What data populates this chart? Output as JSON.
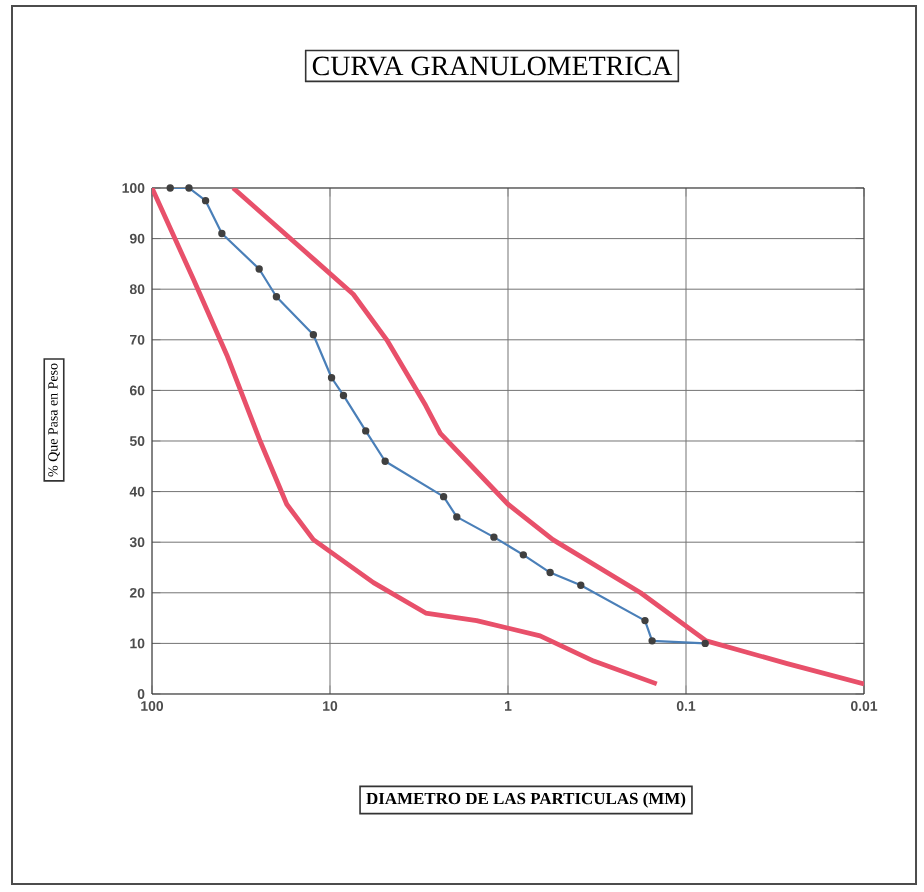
{
  "chart_data": {
    "type": "line",
    "title": "CURVA GRANULOMETRICA",
    "xlabel": "DIAMETRO DE LAS PARTICULAS (MM)",
    "ylabel": "% Que Pasa en Peso",
    "log": "x",
    "xlim": [
      100,
      0.01
    ],
    "ylim": [
      0,
      100
    ],
    "xticks": [
      100,
      10,
      1,
      0.1,
      0.01
    ],
    "yticks": [
      0,
      10,
      20,
      30,
      40,
      50,
      60,
      70,
      80,
      90,
      100
    ],
    "grid": true,
    "series": [
      {
        "color": "#4a7fb8",
        "marker": "circle",
        "x": [
          79,
          62,
          50,
          40.5,
          25,
          20,
          12.4,
          9.8,
          8.4,
          6.3,
          4.9,
          2.3,
          1.94,
          1.2,
          0.82,
          0.58,
          0.39,
          0.17,
          0.155,
          0.078
        ],
        "values": [
          100,
          100,
          97.5,
          91,
          84,
          78.5,
          71,
          62.5,
          59,
          52,
          46,
          39,
          35,
          31,
          27.5,
          24,
          21.5,
          14.5,
          10.5,
          10
        ]
      },
      {
        "color": "#e8506a",
        "marker": "none",
        "x": [
          35,
          12.4,
          7.4,
          4.8,
          2.9,
          2.4,
          1.7,
          1.0,
          0.56,
          0.18,
          0.077,
          0.027,
          0.01
        ],
        "values": [
          100,
          86,
          79,
          70,
          57,
          51.5,
          46,
          37.5,
          30.5,
          20,
          10.5,
          6,
          2
        ]
      },
      {
        "color": "#e8506a",
        "marker": "none",
        "x": [
          100,
          58.6,
          38,
          24.7,
          17.5,
          12.4,
          5.7,
          2.9,
          1.5,
          0.66,
          0.33,
          0.146
        ],
        "values": [
          100,
          82,
          67,
          50,
          37.5,
          30.5,
          22,
          16,
          14.5,
          11.5,
          6.5,
          2
        ]
      }
    ]
  }
}
